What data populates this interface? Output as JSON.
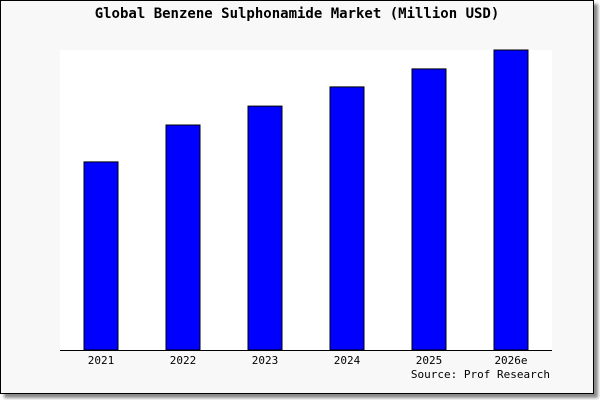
{
  "chart_data": {
    "type": "bar",
    "title": "Global Benzene Sulphonamide Market (Million USD)",
    "categories": [
      "2021",
      "2022",
      "2023",
      "2024",
      "2025",
      "2026e"
    ],
    "values": [
      62.7,
      75.0,
      81.3,
      87.7,
      93.7,
      100.0
    ],
    "value_note_units": "relative (no y-axis printed)",
    "xlabel": "",
    "ylabel": "",
    "ylim": [
      0,
      100
    ],
    "grid": false,
    "bar_color": "#0000ff",
    "source": "Source: Prof Research"
  }
}
